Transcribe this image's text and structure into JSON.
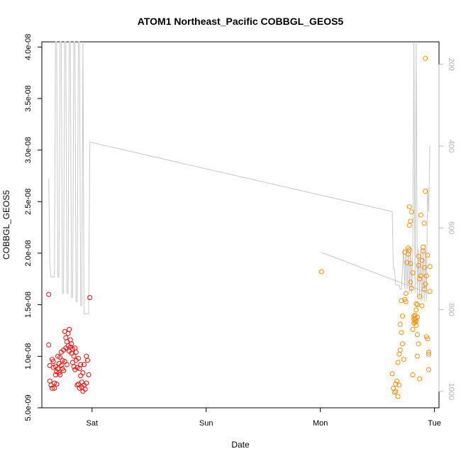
{
  "chart_data": {
    "type": "scatter",
    "title": "ATOM1 Northeast_Pacific COBBGL_GEOS5",
    "xlabel": "Date",
    "ylabel": "COBBGL_GEOS5",
    "ylim": [
      5e-09,
      4.05e-08
    ],
    "x_unit": "days from Friday 00:00 (Sat=1, Sun=2, Mon=3, Tue=4)",
    "xlim": [
      0.56,
      4.04
    ],
    "xticks": [
      {
        "v": 1,
        "label": "Sat"
      },
      {
        "v": 2,
        "label": "Sun"
      },
      {
        "v": 3,
        "label": "Mon"
      },
      {
        "v": 4,
        "label": "Tue"
      }
    ],
    "yticks": [
      {
        "v": 5e-09,
        "label": "5.0e-09"
      },
      {
        "v": 1e-08,
        "label": "1.0e-08"
      },
      {
        "v": 1.5e-08,
        "label": "1.5e-08"
      },
      {
        "v": 2e-08,
        "label": "2.0e-08"
      },
      {
        "v": 2.5e-08,
        "label": "2.5e-08"
      },
      {
        "v": 3e-08,
        "label": "3.0e-08"
      },
      {
        "v": 3.5e-08,
        "label": "3.5e-08"
      },
      {
        "v": 4e-08,
        "label": "4.0e-08"
      }
    ],
    "right_axis": {
      "range_top": 145,
      "range_bottom": 1040,
      "inverted": true,
      "ticks": [
        {
          "v": 200,
          "label": "200"
        },
        {
          "v": 400,
          "label": "400"
        },
        {
          "v": 600,
          "label": "600"
        },
        {
          "v": 800,
          "label": "800"
        },
        {
          "v": 1000,
          "label": "1000"
        }
      ]
    },
    "colors": {
      "series1": "#ff0000",
      "series2": "#ff8c00",
      "pressure": "#c8c8c8"
    },
    "series": [
      {
        "points": [
          [
            0.62,
            1.11e-08
          ],
          [
            0.62,
            1.6e-08
          ],
          [
            0.63,
            9.1e-09
          ],
          [
            0.63,
            7.6e-09
          ],
          [
            0.64,
            7.2e-09
          ],
          [
            0.65,
            6.9e-09
          ],
          [
            0.65,
            9.7e-09
          ],
          [
            0.66,
            9.5e-09
          ],
          [
            0.66,
            8.9e-09
          ],
          [
            0.67,
            6.9e-09
          ],
          [
            0.67,
            7.4e-09
          ],
          [
            0.68,
            9e-09
          ],
          [
            0.68,
            8.2e-09
          ],
          [
            0.69,
            8.5e-09
          ],
          [
            0.69,
            7.3e-09
          ],
          [
            0.7,
            8.8e-09
          ],
          [
            0.7,
            1e-08
          ],
          [
            0.71,
            9.3e-09
          ],
          [
            0.71,
            8.4e-09
          ],
          [
            0.72,
            8.2e-09
          ],
          [
            0.72,
            9.9e-09
          ],
          [
            0.73,
            9.1e-09
          ],
          [
            0.73,
            1.04e-08
          ],
          [
            0.74,
            9.6e-09
          ],
          [
            0.74,
            8.8e-09
          ],
          [
            0.75,
            8.6e-09
          ],
          [
            0.75,
            1.06e-08
          ],
          [
            0.76,
            1.24e-08
          ],
          [
            0.76,
            9.5e-09
          ],
          [
            0.77,
            1.18e-08
          ],
          [
            0.77,
            1.08e-08
          ],
          [
            0.78,
            1.14e-08
          ],
          [
            0.78,
            9.2e-09
          ],
          [
            0.79,
            1.22e-08
          ],
          [
            0.79,
            1.1e-08
          ],
          [
            0.8,
            1.26e-08
          ],
          [
            0.8,
            1.05e-08
          ],
          [
            0.81,
            1.09e-08
          ],
          [
            0.81,
            1.16e-08
          ],
          [
            0.82,
            1.03e-08
          ],
          [
            0.82,
            1.12e-08
          ],
          [
            0.83,
            1.07e-08
          ],
          [
            0.83,
            9.4e-09
          ],
          [
            0.84,
            1e-08
          ],
          [
            0.84,
            9e-09
          ],
          [
            0.85,
            1.08e-08
          ],
          [
            0.85,
            8.7e-09
          ],
          [
            0.86,
            1.04e-08
          ],
          [
            0.86,
            9.6e-09
          ],
          [
            0.87,
            8.9e-09
          ],
          [
            0.87,
            7.2e-09
          ],
          [
            0.88,
            9.8e-09
          ],
          [
            0.88,
            7.3e-09
          ],
          [
            0.89,
            8.8e-09
          ],
          [
            0.89,
            6.9e-09
          ],
          [
            0.9,
            8.1e-09
          ],
          [
            0.9,
            9.2e-09
          ],
          [
            0.91,
            7.5e-09
          ],
          [
            0.91,
            7e-09
          ],
          [
            0.92,
            6.6e-09
          ],
          [
            0.92,
            8.4e-09
          ],
          [
            0.93,
            9.2e-09
          ],
          [
            0.93,
            7.2e-09
          ],
          [
            0.94,
            6.8e-09
          ],
          [
            0.95,
            7.4e-09
          ],
          [
            0.95,
            1e-08
          ],
          [
            0.96,
            9.6e-09
          ],
          [
            0.97,
            8.2e-09
          ],
          [
            0.98,
            1.57e-08
          ]
        ]
      },
      {
        "points": [
          [
            3.01,
            1.82e-08
          ],
          [
            3.63,
            8.3e-09
          ],
          [
            3.64,
            6.9e-09
          ],
          [
            3.65,
            6.5e-09
          ],
          [
            3.66,
            7.3e-09
          ],
          [
            3.66,
            6.6e-09
          ],
          [
            3.67,
            7.6e-09
          ],
          [
            3.68,
            6.1e-09
          ],
          [
            3.68,
            9.4e-09
          ],
          [
            3.69,
            1.02e-08
          ],
          [
            3.69,
            7.2e-09
          ],
          [
            3.7,
            1.06e-08
          ],
          [
            3.7,
            1.31e-08
          ],
          [
            3.71,
            1.23e-08
          ],
          [
            3.71,
            1.54e-08
          ],
          [
            3.72,
            1.12e-08
          ],
          [
            3.72,
            1.39e-08
          ],
          [
            3.73,
            9.7e-09
          ],
          [
            3.74,
            1.55e-08
          ],
          [
            3.74,
            2.01e-08
          ],
          [
            3.75,
            1.61e-08
          ],
          [
            3.75,
            1.53e-08
          ],
          [
            3.76,
            1.91e-08
          ],
          [
            3.77,
            2.05e-08
          ],
          [
            3.77,
            1.99e-08
          ],
          [
            3.78,
            2.27e-08
          ],
          [
            3.78,
            2.45e-08
          ],
          [
            3.78,
            2.03e-08
          ],
          [
            3.79,
            2.31e-08
          ],
          [
            3.79,
            1.9e-08
          ],
          [
            3.79,
            1.72e-08
          ],
          [
            3.8,
            1.66e-08
          ],
          [
            3.8,
            2.4e-08
          ],
          [
            3.81,
            1.81e-08
          ],
          [
            3.81,
            1.26e-08
          ],
          [
            3.81,
            8.2e-09
          ],
          [
            3.82,
            1.32e-08
          ],
          [
            3.82,
            1.36e-08
          ],
          [
            3.82,
            1.39e-08
          ],
          [
            3.83,
            1.35e-08
          ],
          [
            3.83,
            1.33e-08
          ],
          [
            3.83,
            1.4e-08
          ],
          [
            3.83,
            1.37e-08
          ],
          [
            3.84,
            1.3e-08
          ],
          [
            3.84,
            1.45e-08
          ],
          [
            3.84,
            1.51e-08
          ],
          [
            3.84,
            1.34e-08
          ],
          [
            3.85,
            1.38e-08
          ],
          [
            3.85,
            1.5e-08
          ],
          [
            3.85,
            1.21e-08
          ],
          [
            3.85,
            1e-08
          ],
          [
            3.86,
            1.12e-08
          ],
          [
            3.86,
            1.88e-08
          ],
          [
            3.86,
            1.97e-08
          ],
          [
            3.87,
            1.75e-08
          ],
          [
            3.87,
            1.58e-08
          ],
          [
            3.87,
            7.8e-09
          ],
          [
            3.88,
            1.78e-08
          ],
          [
            3.88,
            2.37e-08
          ],
          [
            3.89,
            1.49e-08
          ],
          [
            3.89,
            1.93e-08
          ],
          [
            3.9,
            2.02e-08
          ],
          [
            3.9,
            2.06e-08
          ],
          [
            3.91,
            1.86e-08
          ],
          [
            3.91,
            2.29e-08
          ],
          [
            3.91,
            1.65e-08
          ],
          [
            3.92,
            1.7e-08
          ],
          [
            3.92,
            2.6e-08
          ],
          [
            3.92,
            3.89e-08
          ],
          [
            3.93,
            1.78e-08
          ],
          [
            3.93,
            1.19e-08
          ],
          [
            3.94,
            1.17e-08
          ],
          [
            3.94,
            1.98e-08
          ],
          [
            3.95,
            1.04e-08
          ],
          [
            3.95,
            1.02e-08
          ],
          [
            3.95,
            8.7e-09
          ],
          [
            3.96,
            1.87e-08
          ],
          [
            3.96,
            1.63e-08
          ]
        ]
      }
    ],
    "pressure_line": [
      [
        0.62,
        480
      ],
      [
        0.63,
        690
      ],
      [
        0.64,
        720
      ],
      [
        0.65,
        720
      ],
      [
        0.66,
        720
      ],
      [
        0.67,
        720
      ],
      [
        0.68,
        145
      ],
      [
        0.69,
        145
      ],
      [
        0.7,
        720
      ],
      [
        0.71,
        720
      ],
      [
        0.72,
        145
      ],
      [
        0.73,
        145
      ],
      [
        0.74,
        760
      ],
      [
        0.75,
        760
      ],
      [
        0.76,
        145
      ],
      [
        0.77,
        145
      ],
      [
        0.78,
        760
      ],
      [
        0.79,
        760
      ],
      [
        0.8,
        145
      ],
      [
        0.81,
        145
      ],
      [
        0.82,
        770
      ],
      [
        0.83,
        770
      ],
      [
        0.84,
        145
      ],
      [
        0.85,
        145
      ],
      [
        0.86,
        780
      ],
      [
        0.87,
        780
      ],
      [
        0.88,
        145
      ],
      [
        0.89,
        145
      ],
      [
        0.9,
        790
      ],
      [
        0.91,
        790
      ],
      [
        0.92,
        145
      ],
      [
        0.93,
        810
      ],
      [
        0.94,
        810
      ],
      [
        0.95,
        810
      ],
      [
        0.96,
        810
      ],
      [
        0.97,
        810
      ],
      [
        0.98,
        390
      ],
      [
        3.63,
        560
      ],
      [
        3.64,
        700
      ],
      [
        3.65,
        700
      ],
      [
        3.66,
        740
      ],
      [
        3.67,
        740
      ],
      [
        3.68,
        740
      ],
      [
        3.69,
        740
      ],
      [
        3.7,
        750
      ],
      [
        3.71,
        750
      ],
      [
        3.72,
        700
      ],
      [
        3.73,
        650
      ],
      [
        3.74,
        750
      ],
      [
        3.75,
        650
      ],
      [
        3.76,
        750
      ],
      [
        3.77,
        650
      ],
      [
        3.78,
        760
      ],
      [
        3.79,
        650
      ],
      [
        3.8,
        760
      ],
      [
        3.81,
        650
      ],
      [
        3.82,
        145
      ],
      [
        3.83,
        760
      ],
      [
        3.84,
        145
      ],
      [
        3.85,
        770
      ],
      [
        3.86,
        650
      ],
      [
        3.87,
        770
      ],
      [
        3.88,
        650
      ],
      [
        3.89,
        780
      ],
      [
        3.9,
        650
      ],
      [
        3.91,
        780
      ],
      [
        3.92,
        640
      ],
      [
        3.93,
        780
      ],
      [
        3.94,
        500
      ],
      [
        3.95,
        560
      ],
      [
        3.96,
        400
      ]
    ],
    "pressure_line_b": [
      [
        3.01,
        660
      ],
      [
        3.95,
        760
      ]
    ]
  }
}
